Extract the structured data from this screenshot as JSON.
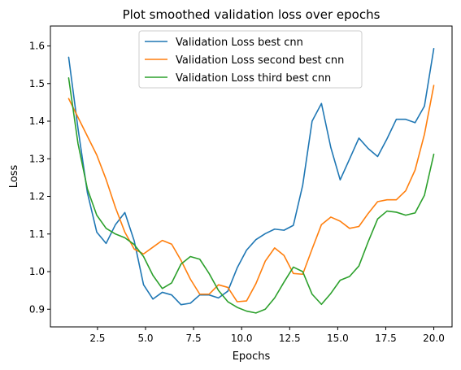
{
  "chart_data": {
    "type": "line",
    "title": "Plot smoothed validation loss over epochs",
    "xlabel": "Epochs",
    "ylabel": "Loss",
    "xlim": [
      0.05,
      20.95
    ],
    "ylim": [
      0.853,
      1.653
    ],
    "xticks": [
      2.5,
      5.0,
      7.5,
      10.0,
      12.5,
      15.0,
      17.5,
      20.0
    ],
    "xtick_labels": [
      "2.5",
      "5.0",
      "7.5",
      "10.0",
      "12.5",
      "15.0",
      "17.5",
      "20.0"
    ],
    "yticks": [
      0.9,
      1.0,
      1.1,
      1.2,
      1.3,
      1.4,
      1.5,
      1.6
    ],
    "ytick_labels": [
      "0.9",
      "1.0",
      "1.1",
      "1.2",
      "1.3",
      "1.4",
      "1.5",
      "1.6"
    ],
    "grid": false,
    "legend_position": "top-center",
    "x": [
      1.0,
      1.487,
      1.974,
      2.462,
      2.949,
      3.436,
      3.923,
      4.41,
      4.897,
      5.385,
      5.872,
      6.359,
      6.846,
      7.333,
      7.821,
      8.308,
      8.795,
      9.282,
      9.769,
      10.256,
      10.744,
      11.231,
      11.718,
      12.205,
      12.692,
      13.179,
      13.667,
      14.154,
      14.641,
      15.128,
      15.615,
      16.103,
      16.59,
      17.077,
      17.564,
      18.051,
      18.538,
      19.026,
      19.513,
      20.0
    ],
    "series": [
      {
        "name": "Validation Loss best cnn",
        "color": "#1f77b4",
        "values": [
          1.57,
          1.38,
          1.21,
          1.105,
          1.075,
          1.125,
          1.157,
          1.082,
          0.965,
          0.927,
          0.945,
          0.938,
          0.912,
          0.916,
          0.938,
          0.938,
          0.93,
          0.948,
          1.01,
          1.057,
          1.085,
          1.101,
          1.113,
          1.11,
          1.123,
          1.23,
          1.4,
          1.447,
          1.33,
          1.244,
          1.299,
          1.355,
          1.327,
          1.306,
          1.353,
          1.405,
          1.405,
          1.396,
          1.44,
          1.593
        ]
      },
      {
        "name": "Validation Loss second best cnn",
        "color": "#ff7f0e",
        "values": [
          1.46,
          1.41,
          1.36,
          1.31,
          1.245,
          1.17,
          1.105,
          1.06,
          1.047,
          1.065,
          1.083,
          1.073,
          1.03,
          0.98,
          0.94,
          0.94,
          0.965,
          0.958,
          0.92,
          0.922,
          0.968,
          1.028,
          1.063,
          1.043,
          0.995,
          0.993,
          1.06,
          1.125,
          1.145,
          1.134,
          1.115,
          1.12,
          1.155,
          1.186,
          1.191,
          1.191,
          1.215,
          1.27,
          1.365,
          1.495
        ]
      },
      {
        "name": "Validation Loss third best cnn",
        "color": "#2ca02c",
        "values": [
          1.515,
          1.34,
          1.22,
          1.15,
          1.115,
          1.1,
          1.09,
          1.072,
          1.04,
          0.99,
          0.955,
          0.97,
          1.02,
          1.04,
          1.033,
          0.995,
          0.95,
          0.92,
          0.905,
          0.895,
          0.89,
          0.9,
          0.93,
          0.972,
          1.012,
          1.0,
          0.94,
          0.913,
          0.942,
          0.977,
          0.987,
          1.015,
          1.08,
          1.14,
          1.161,
          1.158,
          1.15,
          1.156,
          1.203,
          1.312
        ]
      }
    ]
  }
}
